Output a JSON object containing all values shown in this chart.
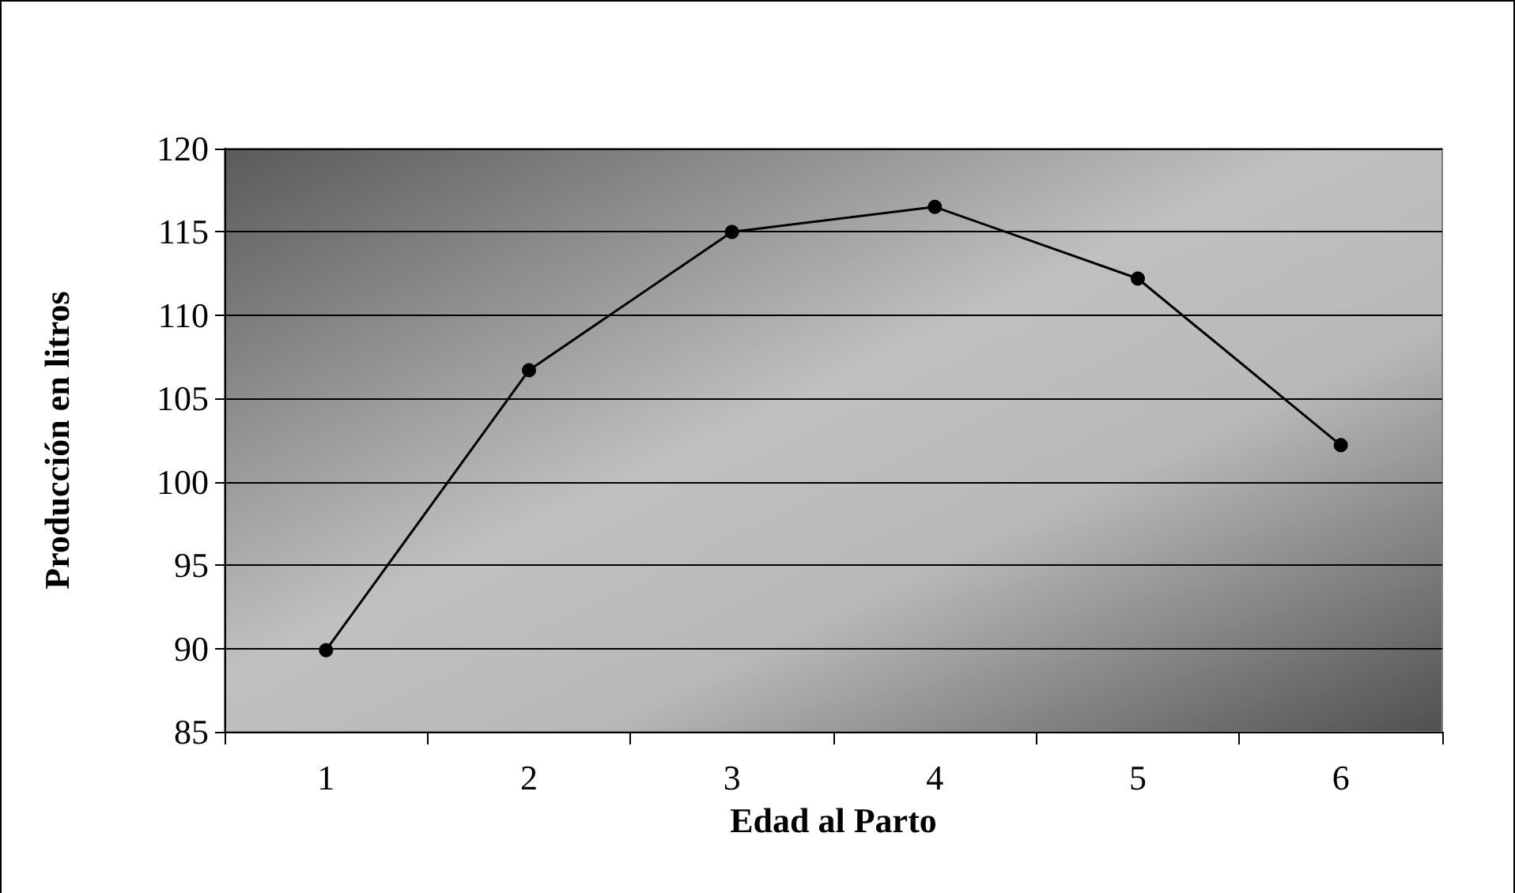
{
  "chart_data": {
    "type": "line",
    "xlabel": "Edad al Parto",
    "ylabel": "Producción en litros",
    "categories": [
      "1",
      "2",
      "3",
      "4",
      "5",
      "6"
    ],
    "series": [
      {
        "color": "#000000",
        "values": [
          89.9,
          106.7,
          115,
          116.5,
          112.2,
          102.2
        ]
      }
    ],
    "ylim": [
      85,
      120
    ],
    "yticks": [
      85,
      90,
      95,
      100,
      105,
      110,
      115,
      120
    ],
    "grid": "y",
    "marker": "circle",
    "line_style": "solid"
  }
}
